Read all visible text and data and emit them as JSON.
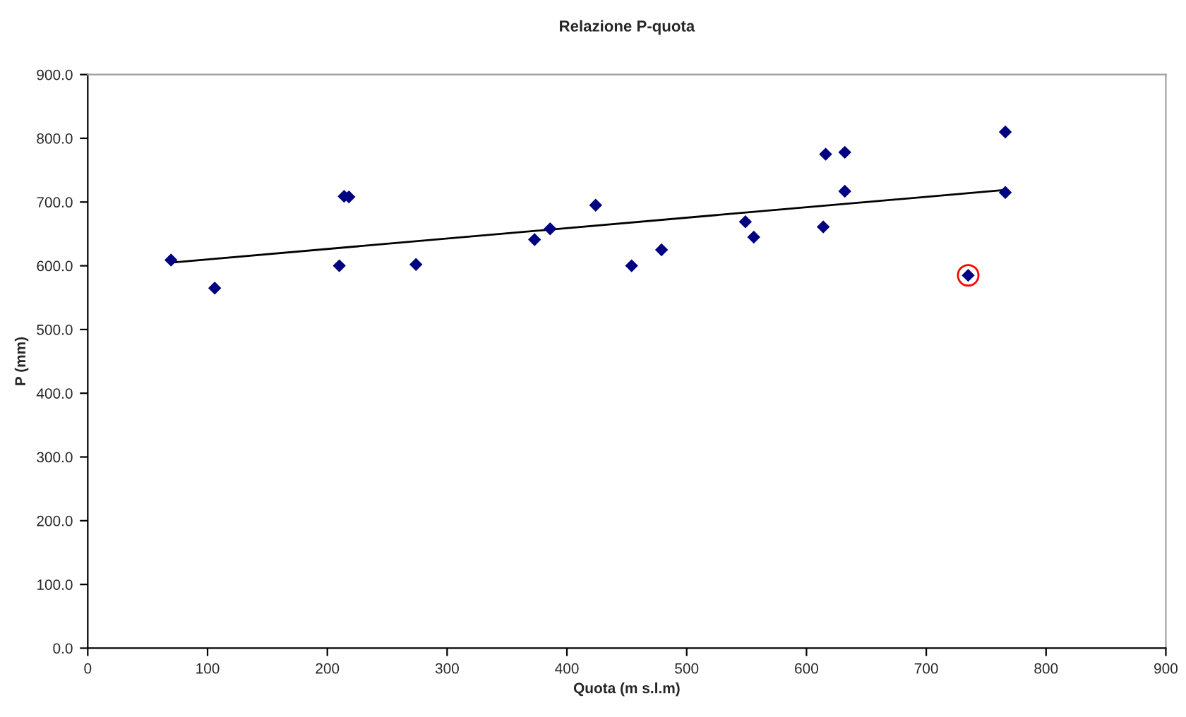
{
  "chart_data": {
    "type": "scatter",
    "title": "Relazione P-quota",
    "xlabel": "Quota (m s.l.m)",
    "ylabel": "P (mm)",
    "xlim": [
      0,
      900
    ],
    "xticks": [
      0,
      100,
      200,
      300,
      400,
      500,
      600,
      700,
      800,
      900
    ],
    "ylim": [
      0,
      900
    ],
    "yticks": [
      {
        "value": 0,
        "label": "0.0"
      },
      {
        "value": 100,
        "label": "100.0"
      },
      {
        "value": 200,
        "label": "200.0"
      },
      {
        "value": 300,
        "label": "300.0"
      },
      {
        "value": 400,
        "label": "400.0"
      },
      {
        "value": 500,
        "label": "500.0"
      },
      {
        "value": 600,
        "label": "600.0"
      },
      {
        "value": 700,
        "label": "700.0"
      },
      {
        "value": 800,
        "label": "800.0"
      },
      {
        "value": 900,
        "label": "900.0"
      }
    ],
    "grid": false,
    "legend": false,
    "marker": "diamond",
    "series": [
      {
        "color": "#000080",
        "x": [
          69.5,
          106,
          210,
          214,
          218,
          274,
          373,
          386,
          424,
          454,
          479,
          549,
          556,
          614,
          616,
          632,
          632,
          735,
          766,
          766
        ],
        "values": [
          609,
          565,
          600,
          709,
          708,
          602,
          641,
          658,
          695,
          600,
          625,
          669,
          645,
          661,
          775,
          778,
          717,
          585,
          810,
          715
        ]
      },
      {
        "type": "scatter",
        "color": "#ff0000",
        "marker": "circle",
        "x": [
          735
        ],
        "values": [
          585
        ]
      },
      {
        "type": "line",
        "color": "#000000",
        "marker": "none",
        "line_style": "solid",
        "x": [
          69.5,
          766
        ],
        "values": [
          605,
          719
        ]
      }
    ]
  }
}
